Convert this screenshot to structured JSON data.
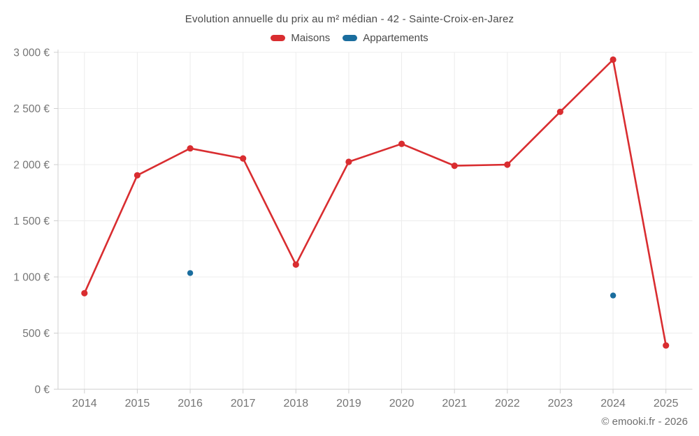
{
  "page": {
    "title": "Evolution annuelle du prix au m² médian - 42 - Sainte-Croix-en-Jarez",
    "copyright": "© emooki.fr - 2026"
  },
  "legend": {
    "items": [
      {
        "label": "Maisons",
        "color": "#d92d30"
      },
      {
        "label": "Appartements",
        "color": "#1a6d9e"
      }
    ]
  },
  "colors": {
    "maisons": "#d92d30",
    "appartements": "#1a6d9e",
    "gridline": "#ececec",
    "axis_line": "#cfcfcf",
    "tick_label": "#757575",
    "title_text": "#4a4a4a"
  },
  "chart_data": {
    "type": "line",
    "title": "Evolution annuelle du prix au m² médian - 42 - Sainte-Croix-en-Jarez",
    "xlabel": "",
    "ylabel": "",
    "categories": [
      "2014",
      "2015",
      "2016",
      "2017",
      "2018",
      "2019",
      "2020",
      "2021",
      "2022",
      "2023",
      "2024",
      "2025"
    ],
    "series": [
      {
        "name": "Maisons",
        "type": "line",
        "color": "#d92d30",
        "values": [
          855,
          1905,
          2145,
          2055,
          1110,
          2025,
          2185,
          1990,
          2000,
          2470,
          2935,
          390
        ]
      },
      {
        "name": "Appartements",
        "type": "scatter",
        "color": "#1a6d9e",
        "values": [
          null,
          null,
          1035,
          null,
          null,
          null,
          null,
          null,
          null,
          null,
          835,
          null
        ]
      }
    ],
    "ylim": [
      0,
      3000
    ],
    "y_ticks": [
      {
        "value": 0,
        "label": "0 €"
      },
      {
        "value": 500,
        "label": "500 €"
      },
      {
        "value": 1000,
        "label": "1 000 €"
      },
      {
        "value": 1500,
        "label": "1 500 €"
      },
      {
        "value": 2000,
        "label": "2 000 €"
      },
      {
        "value": 2500,
        "label": "2 500 €"
      },
      {
        "value": 3000,
        "label": "3 000 €"
      }
    ],
    "grid": true,
    "legend_position": "top",
    "currency": "€"
  }
}
